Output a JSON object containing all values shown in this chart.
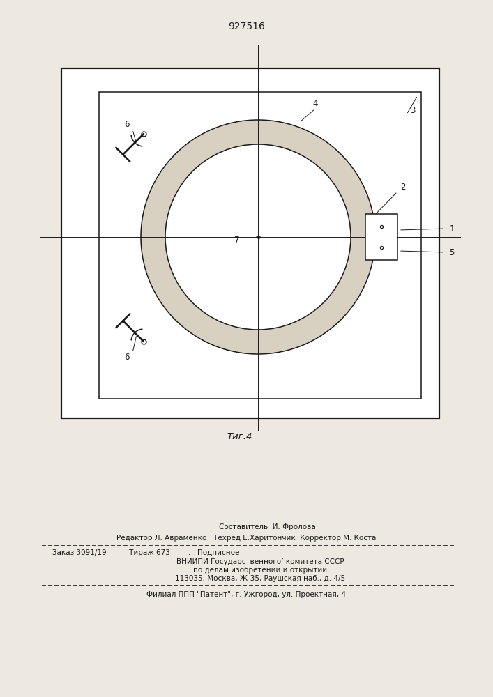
{
  "patent_number": "927516",
  "fig_label": "Τиг.4",
  "bg_color": "#ede9e0",
  "line_color": "#1a1a1a",
  "page_width": 7.07,
  "page_height": 10.0,
  "footer": {
    "line0": "Составитель  И. Фролова",
    "line1": "Редактор Л. Авраменко   Техред Е.Харитончик  Корректор М. Коста",
    "line2": "Заказ 3091/19          Тираж 673        .   Подписное",
    "line3": "ВНИИПИ Государственного’ комитета СССР",
    "line4": "по делам изобретений и открытий",
    "line5": "113035, Москва, Ж-35, Раушская наб., д. 4/5",
    "line6": "Филиал ППП \"Патент\", г. Ужгород, ул. Проектная, 4"
  }
}
